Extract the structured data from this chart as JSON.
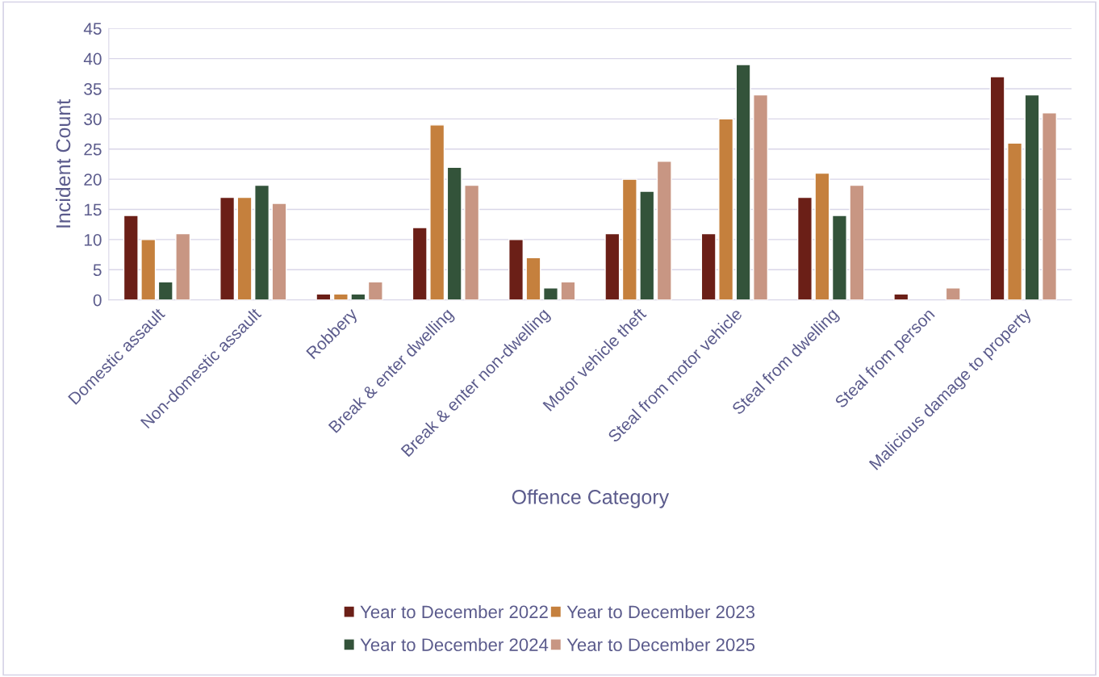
{
  "chart_data": {
    "type": "bar",
    "xlabel": "Offence Category",
    "ylabel": "Incident Count",
    "categories": [
      "Domestic assault",
      "Non-domestic assault",
      "Robbery",
      "Break & enter dwelling",
      "Break & enter non-dwelling",
      "Motor vehicle theft",
      "Steal from motor vehicle",
      "Steal from dwelling",
      "Steal from person",
      "Malicious damage to property"
    ],
    "series": [
      {
        "name": "Year to December 2022",
        "color": "#6b1f17",
        "values": [
          14,
          17,
          1,
          12,
          10,
          11,
          11,
          17,
          1,
          37
        ]
      },
      {
        "name": "Year to December 2023",
        "color": "#c5803d",
        "values": [
          10,
          17,
          1,
          29,
          7,
          20,
          30,
          21,
          null,
          26
        ]
      },
      {
        "name": "Year to December 2024",
        "color": "#33533a",
        "values": [
          3,
          19,
          1,
          22,
          2,
          18,
          39,
          14,
          null,
          34
        ]
      },
      {
        "name": "Year to December 2025",
        "color": "#c89683",
        "values": [
          11,
          16,
          3,
          19,
          3,
          23,
          34,
          19,
          2,
          31
        ]
      }
    ],
    "ylim": [
      0,
      45
    ],
    "yticks": [
      0,
      5,
      10,
      15,
      20,
      25,
      30,
      35,
      40,
      45
    ],
    "grid": "y",
    "legend": "bottom"
  }
}
